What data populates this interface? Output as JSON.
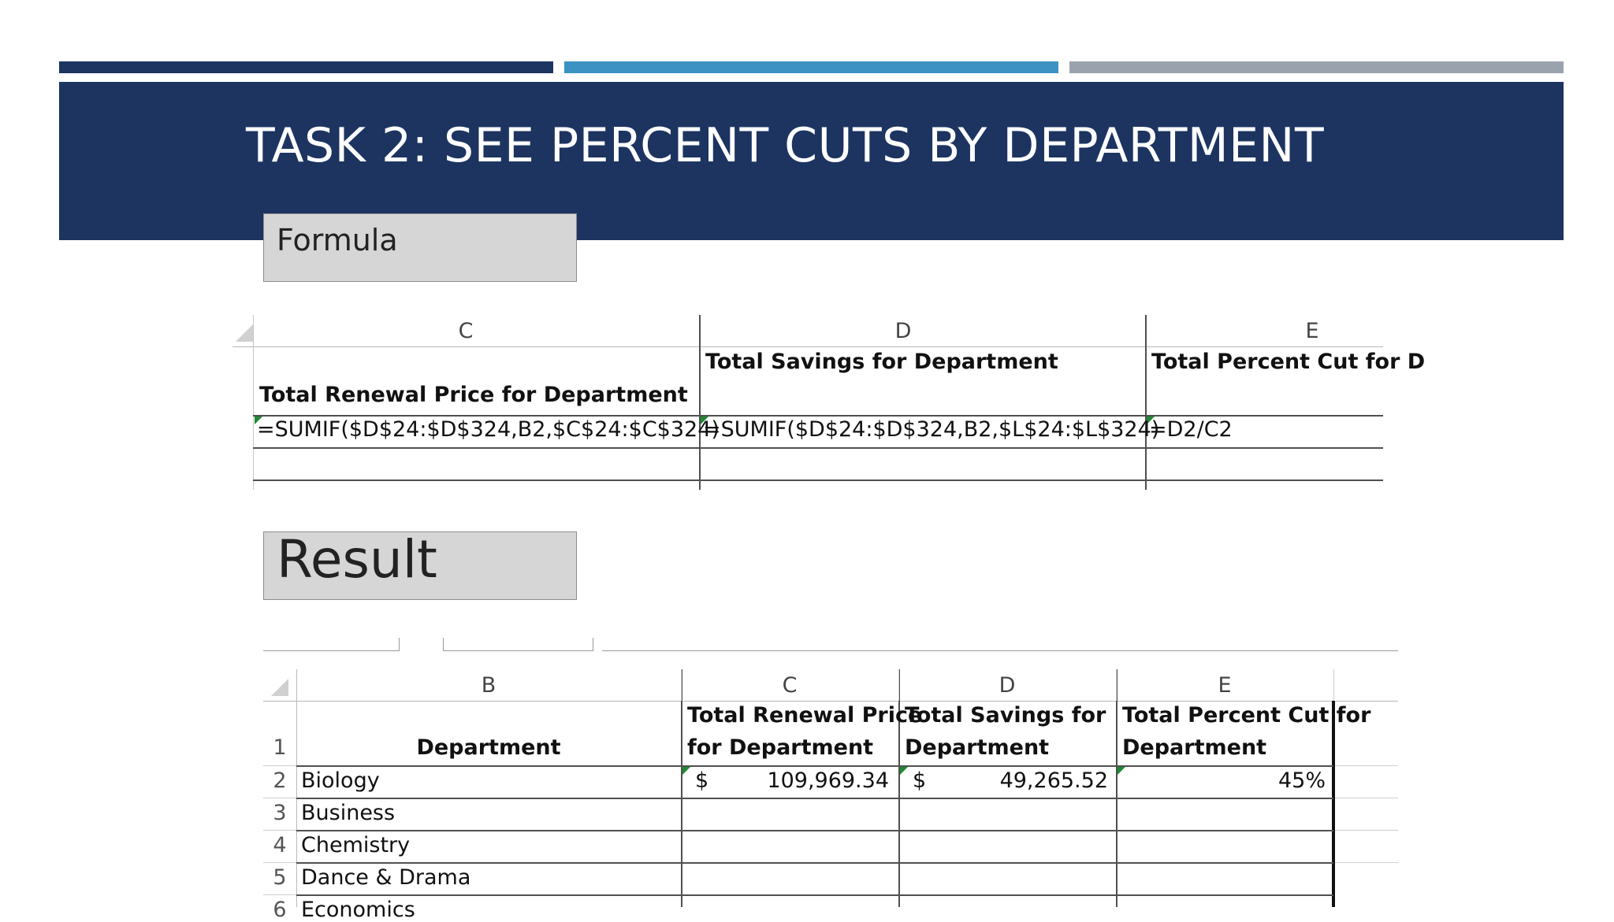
{
  "slide": {
    "title": "TASK 2: SEE PERCENT CUTS BY DEPARTMENT",
    "colors": {
      "banner": "#1d3461",
      "bar_dark": "#1e3461",
      "bar_blue": "#3b92c3",
      "bar_gray": "#9aa3ad"
    }
  },
  "formula_label": "Formula",
  "result_label": "Result",
  "formula_sheet": {
    "columns": [
      "C",
      "D",
      "E"
    ],
    "headers": [
      "Total Renewal Price for Department",
      "Total Savings for Department",
      "Total Percent Cut for D"
    ],
    "formulas": [
      "=SUMIF($D$24:$D$324,B2,$C$24:$C$324)",
      "=SUMIF($D$24:$D$324,B2,$L$24:$L$324)",
      "=D2/C2"
    ]
  },
  "result_sheet": {
    "columns": [
      "B",
      "C",
      "D",
      "E"
    ],
    "header_row": {
      "row_number": "1",
      "department": "Department",
      "renewal_line1": "Total Renewal Price",
      "renewal_line2": "for Department",
      "savings_line1": "Total Savings for",
      "savings_line2": "Department",
      "percent_line1": "Total Percent Cut for",
      "percent_line2": "Department"
    },
    "rows": [
      {
        "num": "2",
        "department": "Biology",
        "currency_c": "$",
        "renewal": "109,969.34",
        "currency_d": "$",
        "savings": "49,265.52",
        "percent": "45%"
      },
      {
        "num": "3",
        "department": "Business"
      },
      {
        "num": "4",
        "department": "Chemistry"
      },
      {
        "num": "5",
        "department": "Dance & Drama"
      },
      {
        "num": "6",
        "department": "Economics"
      }
    ]
  }
}
